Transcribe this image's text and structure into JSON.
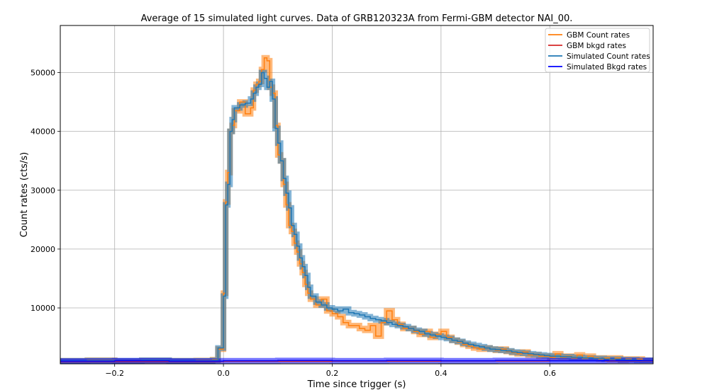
{
  "chart_data": {
    "type": "line",
    "title": "Average of 15 simulated light curves. Data of GRB120323A from Fermi-GBM detector NAI_00.",
    "xlabel": "Time since trigger (s)",
    "ylabel": "Count rates (cts/s)",
    "xlim": [
      -0.3,
      0.79
    ],
    "ylim": [
      500,
      58000
    ],
    "xticks": [
      -0.2,
      0.0,
      0.2,
      0.4,
      0.6
    ],
    "xtick_labels": [
      "−0.2",
      "0.0",
      "0.2",
      "0.4",
      "0.6"
    ],
    "yticks": [
      10000,
      20000,
      30000,
      40000,
      50000
    ],
    "ytick_labels": [
      "10000",
      "20000",
      "30000",
      "40000",
      "50000"
    ],
    "grid": true,
    "legend_position": "top-right",
    "step": true,
    "series": [
      {
        "name": "GBM Count rates",
        "color": "#ff7f0e",
        "error_band": true,
        "points": [
          [
            -0.3,
            1000
          ],
          [
            -0.25,
            1100
          ],
          [
            -0.2,
            950
          ],
          [
            -0.15,
            1050
          ],
          [
            -0.1,
            1000
          ],
          [
            -0.05,
            1050
          ],
          [
            -0.02,
            1200
          ],
          [
            -0.01,
            3000
          ],
          [
            0.0,
            12500
          ],
          [
            0.004,
            28000
          ],
          [
            0.008,
            33000
          ],
          [
            0.012,
            40000
          ],
          [
            0.016,
            41000
          ],
          [
            0.02,
            43500
          ],
          [
            0.03,
            45000
          ],
          [
            0.04,
            43000
          ],
          [
            0.05,
            44000
          ],
          [
            0.055,
            47000
          ],
          [
            0.06,
            48000
          ],
          [
            0.065,
            48500
          ],
          [
            0.07,
            50500
          ],
          [
            0.075,
            52500
          ],
          [
            0.08,
            52000
          ],
          [
            0.085,
            47500
          ],
          [
            0.09,
            46500
          ],
          [
            0.095,
            41000
          ],
          [
            0.1,
            36000
          ],
          [
            0.105,
            35000
          ],
          [
            0.11,
            31000
          ],
          [
            0.115,
            27500
          ],
          [
            0.12,
            24000
          ],
          [
            0.125,
            23000
          ],
          [
            0.13,
            21000
          ],
          [
            0.135,
            19500
          ],
          [
            0.14,
            17500
          ],
          [
            0.145,
            16000
          ],
          [
            0.15,
            14000
          ],
          [
            0.155,
            12500
          ],
          [
            0.16,
            11500
          ],
          [
            0.17,
            10500
          ],
          [
            0.18,
            11500
          ],
          [
            0.19,
            9500
          ],
          [
            0.2,
            9000
          ],
          [
            0.21,
            8500
          ],
          [
            0.22,
            7500
          ],
          [
            0.23,
            7000
          ],
          [
            0.24,
            7000
          ],
          [
            0.25,
            6500
          ],
          [
            0.26,
            6200
          ],
          [
            0.27,
            7000
          ],
          [
            0.28,
            5200
          ],
          [
            0.29,
            7500
          ],
          [
            0.3,
            9500
          ],
          [
            0.31,
            8000
          ],
          [
            0.32,
            7200
          ],
          [
            0.33,
            6500
          ],
          [
            0.34,
            6500
          ],
          [
            0.35,
            6000
          ],
          [
            0.36,
            5500
          ],
          [
            0.37,
            6000
          ],
          [
            0.38,
            5000
          ],
          [
            0.39,
            5500
          ],
          [
            0.4,
            6000
          ],
          [
            0.41,
            5000
          ],
          [
            0.42,
            4500
          ],
          [
            0.43,
            4200
          ],
          [
            0.44,
            3800
          ],
          [
            0.45,
            3500
          ],
          [
            0.46,
            3200
          ],
          [
            0.47,
            3000
          ],
          [
            0.48,
            3200
          ],
          [
            0.49,
            3000
          ],
          [
            0.5,
            2800
          ],
          [
            0.51,
            3000
          ],
          [
            0.52,
            2600
          ],
          [
            0.53,
            2400
          ],
          [
            0.54,
            2200
          ],
          [
            0.55,
            2500
          ],
          [
            0.56,
            2000
          ],
          [
            0.57,
            2000
          ],
          [
            0.58,
            1800
          ],
          [
            0.59,
            1800
          ],
          [
            0.6,
            1600
          ],
          [
            0.61,
            2200
          ],
          [
            0.62,
            1600
          ],
          [
            0.63,
            1800
          ],
          [
            0.64,
            1500
          ],
          [
            0.65,
            2000
          ],
          [
            0.66,
            1400
          ],
          [
            0.67,
            1800
          ],
          [
            0.68,
            1500
          ],
          [
            0.69,
            1300
          ],
          [
            0.7,
            1500
          ],
          [
            0.71,
            1200
          ],
          [
            0.72,
            1500
          ],
          [
            0.73,
            1100
          ],
          [
            0.74,
            1300
          ],
          [
            0.75,
            1200
          ],
          [
            0.76,
            1300
          ],
          [
            0.77,
            1100
          ],
          [
            0.79,
            1100
          ]
        ]
      },
      {
        "name": "GBM bkgd rates",
        "color": "#d62728",
        "error_band": false,
        "points": [
          [
            -0.3,
            900
          ],
          [
            0.0,
            920
          ],
          [
            0.2,
            950
          ],
          [
            0.4,
            980
          ],
          [
            0.6,
            1000
          ],
          [
            0.79,
            1010
          ]
        ]
      },
      {
        "name": "Simulated Count rates",
        "color": "#1f77b4",
        "error_band": true,
        "points": [
          [
            -0.3,
            1000
          ],
          [
            -0.25,
            1050
          ],
          [
            -0.2,
            1000
          ],
          [
            -0.15,
            1100
          ],
          [
            -0.1,
            1000
          ],
          [
            -0.05,
            1000
          ],
          [
            -0.02,
            1100
          ],
          [
            -0.01,
            3200
          ],
          [
            0.0,
            12000
          ],
          [
            0.004,
            27500
          ],
          [
            0.008,
            31000
          ],
          [
            0.012,
            40000
          ],
          [
            0.016,
            42000
          ],
          [
            0.02,
            44000
          ],
          [
            0.03,
            44500
          ],
          [
            0.04,
            44800
          ],
          [
            0.05,
            45500
          ],
          [
            0.055,
            46500
          ],
          [
            0.06,
            47500
          ],
          [
            0.065,
            48000
          ],
          [
            0.07,
            50000
          ],
          [
            0.075,
            49000
          ],
          [
            0.08,
            47500
          ],
          [
            0.085,
            48500
          ],
          [
            0.09,
            45500
          ],
          [
            0.095,
            40500
          ],
          [
            0.1,
            38000
          ],
          [
            0.105,
            35000
          ],
          [
            0.11,
            32000
          ],
          [
            0.115,
            29500
          ],
          [
            0.12,
            27000
          ],
          [
            0.125,
            24000
          ],
          [
            0.13,
            22500
          ],
          [
            0.135,
            20500
          ],
          [
            0.14,
            18500
          ],
          [
            0.145,
            17000
          ],
          [
            0.15,
            15500
          ],
          [
            0.155,
            13500
          ],
          [
            0.16,
            12000
          ],
          [
            0.17,
            11000
          ],
          [
            0.18,
            10500
          ],
          [
            0.19,
            10000
          ],
          [
            0.2,
            9800
          ],
          [
            0.21,
            9500
          ],
          [
            0.22,
            9800
          ],
          [
            0.23,
            9200
          ],
          [
            0.24,
            9000
          ],
          [
            0.25,
            8800
          ],
          [
            0.26,
            8500
          ],
          [
            0.27,
            8200
          ],
          [
            0.28,
            8000
          ],
          [
            0.29,
            7800
          ],
          [
            0.3,
            7500
          ],
          [
            0.31,
            7200
          ],
          [
            0.32,
            7000
          ],
          [
            0.33,
            6800
          ],
          [
            0.34,
            6500
          ],
          [
            0.35,
            6200
          ],
          [
            0.36,
            6000
          ],
          [
            0.37,
            5600
          ],
          [
            0.38,
            5400
          ],
          [
            0.39,
            5200
          ],
          [
            0.4,
            5000
          ],
          [
            0.41,
            4800
          ],
          [
            0.42,
            4500
          ],
          [
            0.43,
            4300
          ],
          [
            0.44,
            4000
          ],
          [
            0.45,
            3800
          ],
          [
            0.46,
            3600
          ],
          [
            0.47,
            3400
          ],
          [
            0.48,
            3200
          ],
          [
            0.49,
            3000
          ],
          [
            0.5,
            2900
          ],
          [
            0.51,
            2800
          ],
          [
            0.52,
            2700
          ],
          [
            0.53,
            2500
          ],
          [
            0.54,
            2400
          ],
          [
            0.55,
            2300
          ],
          [
            0.56,
            2200
          ],
          [
            0.57,
            2100
          ],
          [
            0.58,
            2000
          ],
          [
            0.59,
            1900
          ],
          [
            0.6,
            1800
          ],
          [
            0.61,
            1800
          ],
          [
            0.62,
            1700
          ],
          [
            0.63,
            1700
          ],
          [
            0.64,
            1600
          ],
          [
            0.65,
            1600
          ],
          [
            0.66,
            1500
          ],
          [
            0.67,
            1500
          ],
          [
            0.68,
            1400
          ],
          [
            0.69,
            1400
          ],
          [
            0.7,
            1300
          ],
          [
            0.71,
            1300
          ],
          [
            0.72,
            1300
          ],
          [
            0.73,
            1200
          ],
          [
            0.74,
            1200
          ],
          [
            0.75,
            1200
          ],
          [
            0.76,
            1100
          ],
          [
            0.77,
            1100
          ],
          [
            0.79,
            1100
          ]
        ]
      },
      {
        "name": "Simulated Bkgd rates",
        "color": "#0000ff",
        "error_band": true,
        "points": [
          [
            -0.3,
            950
          ],
          [
            -0.2,
            1000
          ],
          [
            -0.1,
            950
          ],
          [
            0.0,
            1000
          ],
          [
            0.1,
            1050
          ],
          [
            0.2,
            1000
          ],
          [
            0.3,
            1050
          ],
          [
            0.4,
            1000
          ],
          [
            0.5,
            1050
          ],
          [
            0.6,
            1000
          ],
          [
            0.7,
            1050
          ],
          [
            0.79,
            1000
          ]
        ]
      }
    ]
  }
}
